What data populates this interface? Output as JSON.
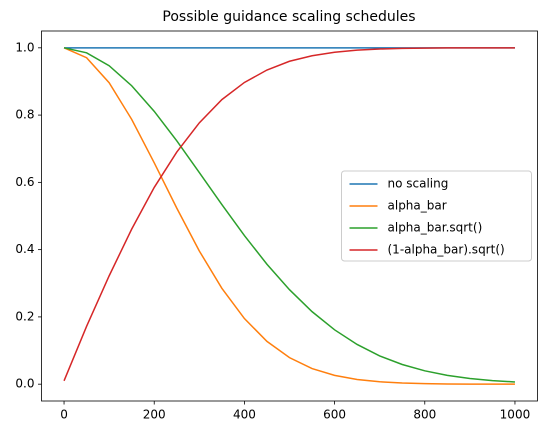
{
  "chart_data": {
    "type": "line",
    "title": "Possible guidance scaling schedules",
    "x": [
      0,
      50,
      100,
      150,
      200,
      250,
      300,
      350,
      400,
      450,
      500,
      550,
      600,
      650,
      700,
      750,
      800,
      850,
      900,
      950,
      1000
    ],
    "series": [
      {
        "name": "no scaling",
        "color": "#1f77b4",
        "values": [
          1,
          1,
          1,
          1,
          1,
          1,
          1,
          1,
          1,
          1,
          1,
          1,
          1,
          1,
          1,
          1,
          1,
          1,
          1,
          1,
          1
        ]
      },
      {
        "name": "alpha_bar",
        "color": "#ff7f0e",
        "values": [
          0.9999,
          0.9705,
          0.8962,
          0.7873,
          0.6581,
          0.5234,
          0.396,
          0.285,
          0.1952,
          0.1272,
          0.0789,
          0.0465,
          0.0261,
          0.0139,
          0.0071,
          0.0034,
          0.0016,
          0.0007,
          0.0003,
          0.0001,
          4e-05
        ]
      },
      {
        "name": "alpha_bar.sqrt()",
        "color": "#2ca02c",
        "values": [
          1,
          0.9851,
          0.9467,
          0.8873,
          0.8112,
          0.7235,
          0.6293,
          0.5339,
          0.4418,
          0.3566,
          0.2809,
          0.2157,
          0.1616,
          0.1181,
          0.0841,
          0.0585,
          0.0397,
          0.0262,
          0.0169,
          0.0107,
          0.0066
        ]
      },
      {
        "name": "(1-alpha_bar).sqrt()",
        "color": "#d62728",
        "values": [
          0.01,
          0.172,
          0.322,
          0.461,
          0.585,
          0.69,
          0.777,
          0.846,
          0.897,
          0.934,
          0.96,
          0.9765,
          0.9869,
          0.993,
          0.9965,
          0.9983,
          0.9992,
          0.9997,
          0.9999,
          0.9999,
          1
        ]
      }
    ],
    "xlim": [
      -50,
      1050
    ],
    "ylim": [
      -0.05,
      1.05
    ],
    "xticks": [
      0,
      200,
      400,
      600,
      800,
      1000
    ],
    "yticks": [
      {
        "value": 0,
        "label": "0.0"
      },
      0.2,
      0.4,
      0.6,
      0.8,
      {
        "value": 1,
        "label": "1.0"
      }
    ],
    "legend": "center right"
  }
}
